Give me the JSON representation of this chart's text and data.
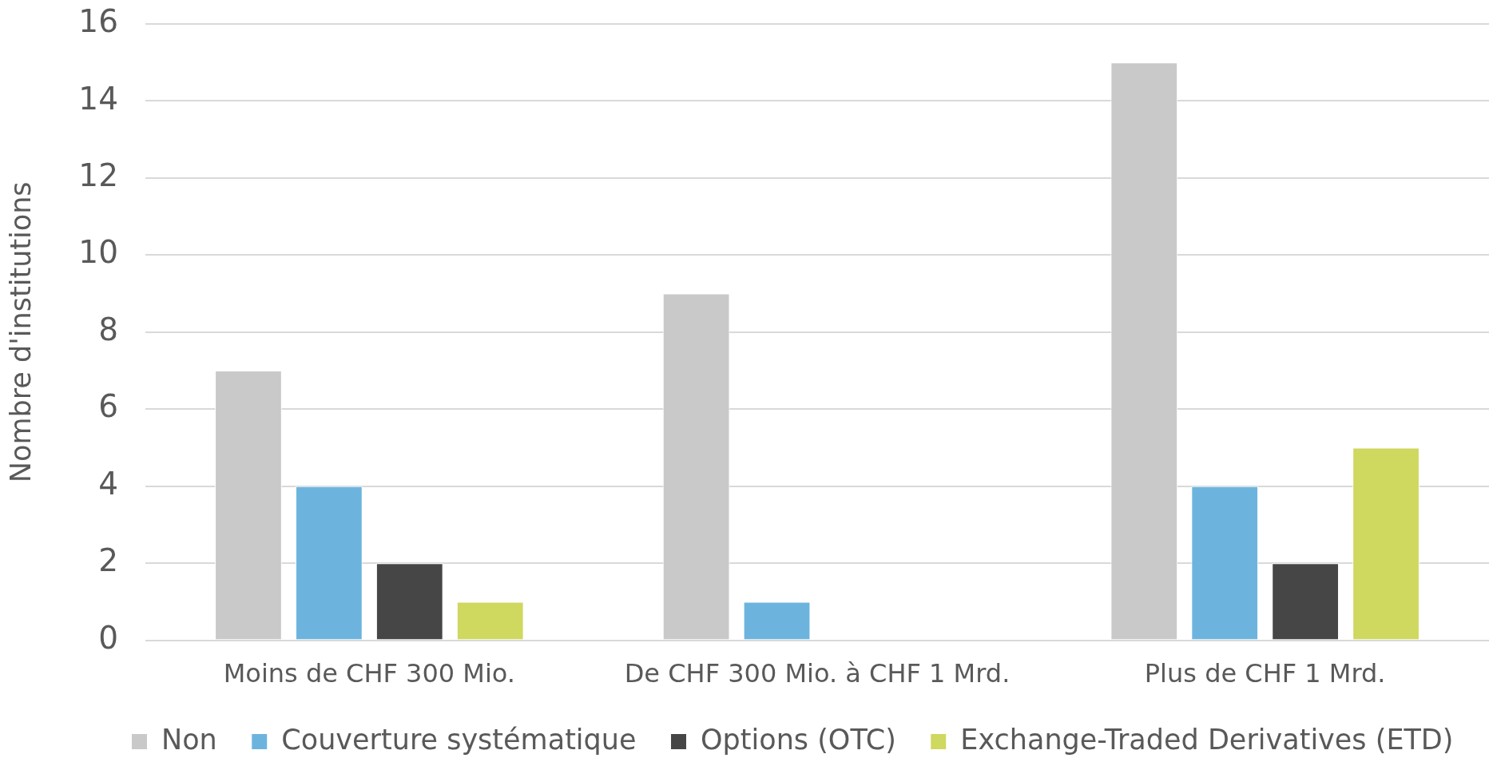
{
  "chart_data": {
    "type": "bar",
    "ylabel": "Nombre d'institutions",
    "categories": [
      "Moins de CHF 300 Mio.",
      "De CHF 300 Mio. à CHF 1 Mrd.",
      "Plus de CHF 1 Mrd."
    ],
    "series": [
      {
        "name": "Non",
        "color": "#c9c9c9",
        "values": [
          7,
          9,
          15
        ]
      },
      {
        "name": "Couverture systématique",
        "color": "#6cb4de",
        "values": [
          4,
          1,
          4
        ]
      },
      {
        "name": "Options (OTC)",
        "color": "#464646",
        "values": [
          2,
          0,
          2
        ]
      },
      {
        "name": "Exchange-Traded Derivatives (ETD)",
        "color": "#cfd85f",
        "values": [
          1,
          0,
          5
        ]
      }
    ],
    "ylim": [
      0,
      16
    ],
    "yticks": [
      0,
      2,
      4,
      6,
      8,
      10,
      12,
      14,
      16
    ],
    "grid": "y",
    "legend": "bottom"
  }
}
